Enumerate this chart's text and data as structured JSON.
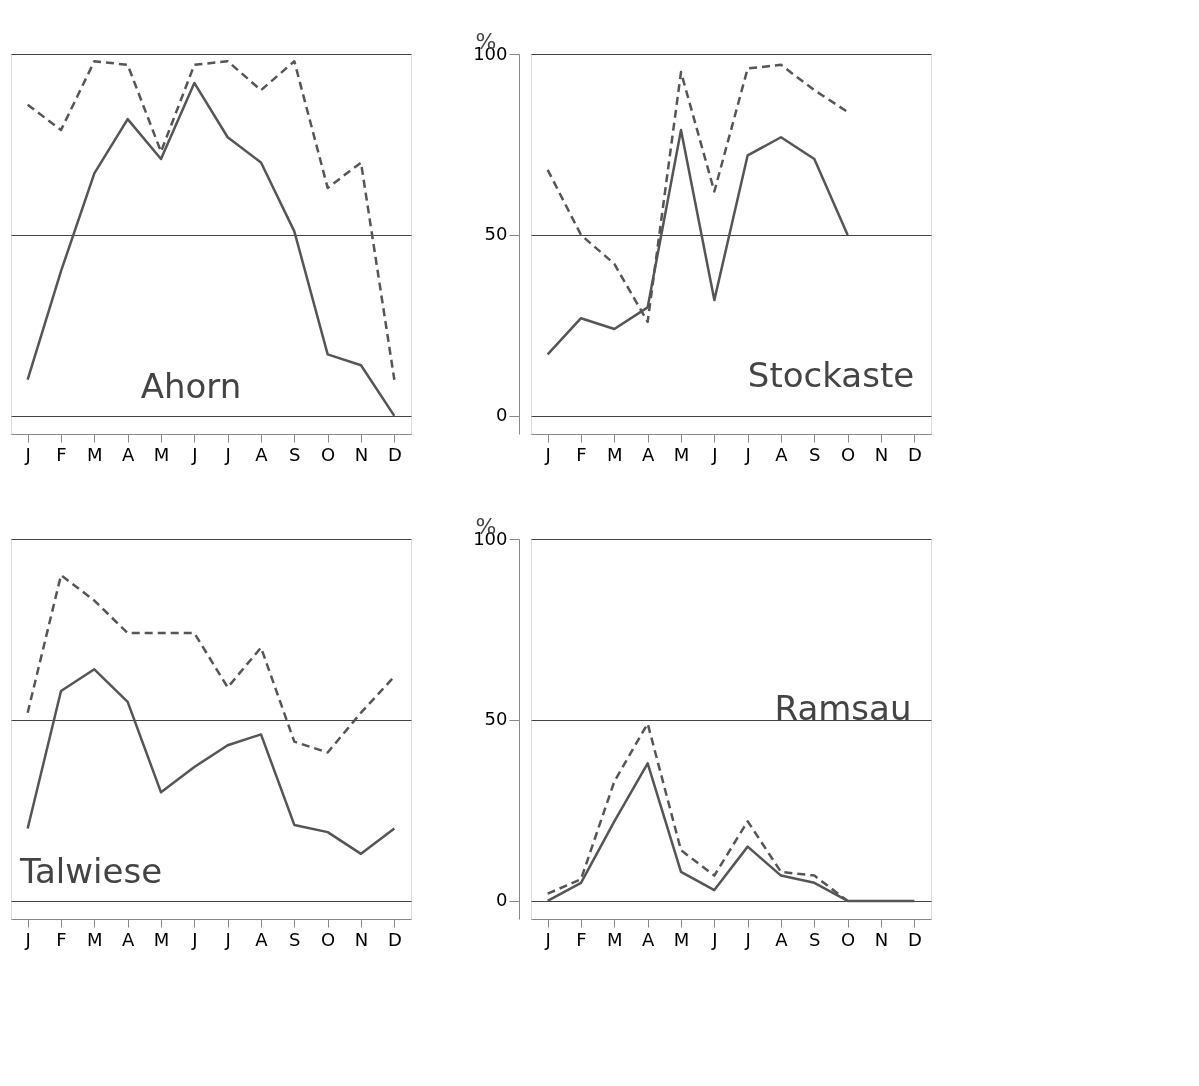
{
  "chart_data": [
    {
      "type": "line",
      "title": "Ahorn",
      "categories": [
        "J",
        "F",
        "M",
        "A",
        "M",
        "J",
        "J",
        "A",
        "S",
        "O",
        "N",
        "D"
      ],
      "ylim": [
        -5,
        100
      ],
      "yticks": [
        0,
        50,
        100
      ],
      "grid": "y",
      "tick_labels": "x",
      "series": [
        {
          "color": "#555555",
          "line_style": "solid",
          "values": [
            10,
            40,
            67,
            82,
            71,
            92,
            77,
            70,
            51,
            17,
            14,
            0
          ]
        },
        {
          "color": "#555555",
          "line_style": "dashed",
          "values": [
            86,
            79,
            98,
            97,
            73,
            97,
            98,
            90,
            98,
            63,
            70,
            10
          ]
        }
      ]
    },
    {
      "type": "line",
      "title": "Stockaste",
      "ylabel": "%",
      "categories": [
        "J",
        "F",
        "M",
        "A",
        "M",
        "J",
        "J",
        "A",
        "S",
        "O",
        "N",
        "D"
      ],
      "ylim": [
        -5,
        100
      ],
      "yticks": [
        0,
        50,
        100
      ],
      "grid": "y",
      "series": [
        {
          "color": "#555555",
          "line_style": "solid",
          "values": [
            17,
            27,
            24,
            30,
            79,
            32,
            72,
            77,
            71,
            50,
            null,
            null
          ]
        },
        {
          "color": "#555555",
          "line_style": "dashed",
          "values": [
            68,
            50,
            42,
            26,
            95,
            62,
            96,
            97,
            90,
            84,
            null,
            null
          ]
        }
      ]
    },
    {
      "type": "line",
      "title": "Talwiese",
      "categories": [
        "J",
        "F",
        "M",
        "A",
        "M",
        "J",
        "J",
        "A",
        "S",
        "O",
        "N",
        "D"
      ],
      "ylim": [
        -5,
        100
      ],
      "yticks": [
        0,
        50,
        100
      ],
      "grid": "y",
      "tick_labels": "x",
      "series": [
        {
          "color": "#555555",
          "line_style": "solid",
          "values": [
            20,
            58,
            64,
            55,
            30,
            37,
            43,
            46,
            21,
            19,
            13,
            20
          ]
        },
        {
          "color": "#555555",
          "line_style": "dashed",
          "values": [
            52,
            90,
            83,
            74,
            74,
            74,
            59,
            70,
            44,
            41,
            52,
            62
          ]
        }
      ]
    },
    {
      "type": "line",
      "title": "Ramsau",
      "ylabel": "%",
      "categories": [
        "J",
        "F",
        "M",
        "A",
        "M",
        "J",
        "J",
        "A",
        "S",
        "O",
        "N",
        "D"
      ],
      "ylim": [
        -5,
        100
      ],
      "yticks": [
        0,
        50,
        100
      ],
      "grid": "y",
      "series": [
        {
          "color": "#555555",
          "line_style": "solid",
          "values": [
            0,
            5,
            22,
            38,
            8,
            3,
            15,
            7,
            5,
            0,
            0,
            0
          ]
        },
        {
          "color": "#555555",
          "line_style": "dashed",
          "values": [
            2,
            6,
            33,
            49,
            14,
            7,
            22,
            8,
            7,
            0,
            null,
            null
          ]
        }
      ]
    }
  ]
}
